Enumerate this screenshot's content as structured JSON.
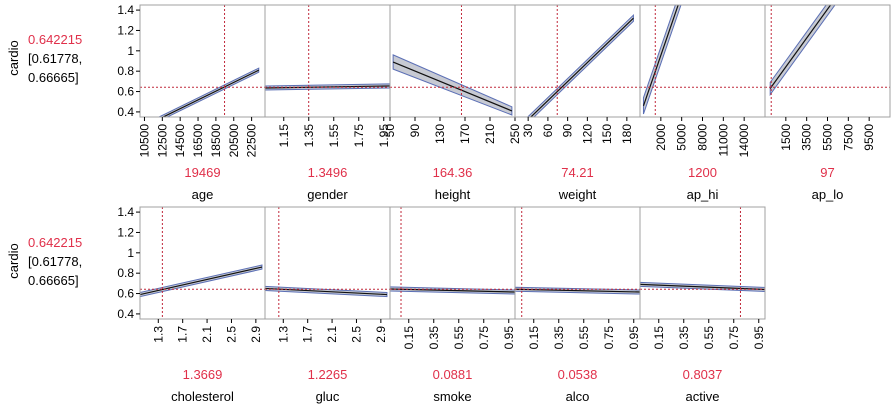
{
  "response": {
    "name": "cardio",
    "prediction": "0.642215",
    "ci_line1": "[0.61778,",
    "ci_line2": "0.66665]",
    "value": 0.642215
  },
  "colors": {
    "line": "#111111",
    "band_fill": "#c7cad3",
    "band_edge": "#5b6fb5",
    "crosshair": "#c0283a",
    "value_text": "#e0304a",
    "frame": "#a0a0a0"
  },
  "chart_data": {
    "type": "line",
    "ylim": [
      0.35,
      1.45
    ],
    "yticks": [
      "1.4",
      "1.2",
      "1",
      "0.8",
      "0.6",
      "0.4"
    ],
    "ytick_values": [
      1.4,
      1.2,
      1.0,
      0.8,
      0.6,
      0.4
    ],
    "panels": [
      {
        "factor": "age",
        "current": "19469",
        "current_value": 19469,
        "xlim": [
          10000,
          24000
        ],
        "ticks": [
          "10500",
          "12500",
          "14500",
          "16500",
          "18500",
          "20500",
          "22500"
        ],
        "tick_values": [
          10500,
          12500,
          14500,
          16500,
          18500,
          20500,
          22500
        ],
        "line": [
          [
            10500,
            0.26
          ],
          [
            23300,
            0.81
          ]
        ],
        "band": [
          0.02,
          0.02
        ]
      },
      {
        "factor": "gender",
        "current": "1.3496",
        "current_value": 1.3496,
        "xlim": [
          1.0,
          2.0
        ],
        "ticks": [
          "1.15",
          "1.35",
          "1.55",
          "1.75",
          "1.95"
        ],
        "tick_values": [
          1.15,
          1.35,
          1.55,
          1.75,
          1.95
        ],
        "line": [
          [
            1.0,
            0.635
          ],
          [
            2.0,
            0.655
          ]
        ],
        "band": [
          0.02,
          0.02
        ]
      },
      {
        "factor": "height",
        "current": "164.36",
        "current_value": 164.36,
        "xlim": [
          50,
          250
        ],
        "ticks": [
          "50",
          "90",
          "130",
          "170",
          "210",
          "250"
        ],
        "tick_values": [
          50,
          90,
          130,
          170,
          210,
          250
        ],
        "line": [
          [
            55,
            0.89
          ],
          [
            245,
            0.41
          ]
        ],
        "band": [
          0.07,
          0.04
        ]
      },
      {
        "factor": "weight",
        "current": "74.21",
        "current_value": 74.21,
        "xlim": [
          10,
          200
        ],
        "ticks": [
          "30",
          "60",
          "90",
          "120",
          "150",
          "180"
        ],
        "tick_values": [
          30,
          60,
          90,
          120,
          150,
          180
        ],
        "line": [
          [
            10,
            0.2
          ],
          [
            190,
            1.32
          ]
        ],
        "band": [
          0.03,
          0.03
        ]
      },
      {
        "factor": "ap_hi",
        "current": "1200",
        "current_value": 1200,
        "xlim": [
          -1000,
          17000
        ],
        "ticks": [
          "2000",
          "5000",
          "8000",
          "11000",
          "14000"
        ],
        "tick_values": [
          2000,
          5000,
          8000,
          11000,
          14000
        ],
        "line": [
          [
            -500,
            0.46
          ],
          [
            5000,
            1.55
          ]
        ],
        "band": [
          0.08,
          0.08
        ]
      },
      {
        "factor": "ap_lo",
        "current": "97",
        "current_value": 97,
        "xlim": [
          -500,
          11500
        ],
        "ticks": [
          "1500",
          "3500",
          "5500",
          "7500",
          "9500"
        ],
        "tick_values": [
          1500,
          3500,
          5500,
          7500,
          9500
        ],
        "line": [
          [
            0,
            0.63
          ],
          [
            6500,
            1.55
          ]
        ],
        "band": [
          0.06,
          0.06
        ]
      },
      {
        "factor": "cholesterol",
        "current": "1.3669",
        "current_value": 1.3669,
        "xlim": [
          1.0,
          3.05
        ],
        "ticks": [
          "1.3",
          "1.7",
          "2.1",
          "2.5",
          "2.9"
        ],
        "tick_values": [
          1.3,
          1.7,
          2.1,
          2.5,
          2.9
        ],
        "line": [
          [
            1.0,
            0.59
          ],
          [
            3.0,
            0.86
          ]
        ],
        "band": [
          0.02,
          0.02
        ]
      },
      {
        "factor": "gluc",
        "current": "1.2265",
        "current_value": 1.2265,
        "xlim": [
          1.0,
          3.05
        ],
        "ticks": [
          "1.3",
          "1.7",
          "2.1",
          "2.5",
          "2.9"
        ],
        "tick_values": [
          1.3,
          1.7,
          2.1,
          2.5,
          2.9
        ],
        "line": [
          [
            1.0,
            0.65
          ],
          [
            3.0,
            0.59
          ]
        ],
        "band": [
          0.02,
          0.02
        ]
      },
      {
        "factor": "smoke",
        "current": "0.0881",
        "current_value": 0.0881,
        "xlim": [
          0.0,
          1.0
        ],
        "ticks": [
          "0.15",
          "0.35",
          "0.55",
          "0.75",
          "0.95"
        ],
        "tick_values": [
          0.15,
          0.35,
          0.55,
          0.75,
          0.95
        ],
        "line": [
          [
            0.0,
            0.645
          ],
          [
            1.0,
            0.615
          ]
        ],
        "band": [
          0.02,
          0.02
        ]
      },
      {
        "factor": "alco",
        "current": "0.0538",
        "current_value": 0.0538,
        "xlim": [
          0.0,
          1.0
        ],
        "ticks": [
          "0.15",
          "0.35",
          "0.55",
          "0.75",
          "0.95"
        ],
        "tick_values": [
          0.15,
          0.35,
          0.55,
          0.75,
          0.95
        ],
        "line": [
          [
            0.0,
            0.642
          ],
          [
            1.0,
            0.615
          ]
        ],
        "band": [
          0.02,
          0.02
        ]
      },
      {
        "factor": "active",
        "current": "0.8037",
        "current_value": 0.8037,
        "xlim": [
          0.0,
          1.0
        ],
        "ticks": [
          "0.15",
          "0.35",
          "0.55",
          "0.75",
          "0.95"
        ],
        "tick_values": [
          0.15,
          0.35,
          0.55,
          0.75,
          0.95
        ],
        "line": [
          [
            0.0,
            0.69
          ],
          [
            1.0,
            0.64
          ]
        ],
        "band": [
          0.02,
          0.02
        ]
      }
    ]
  }
}
